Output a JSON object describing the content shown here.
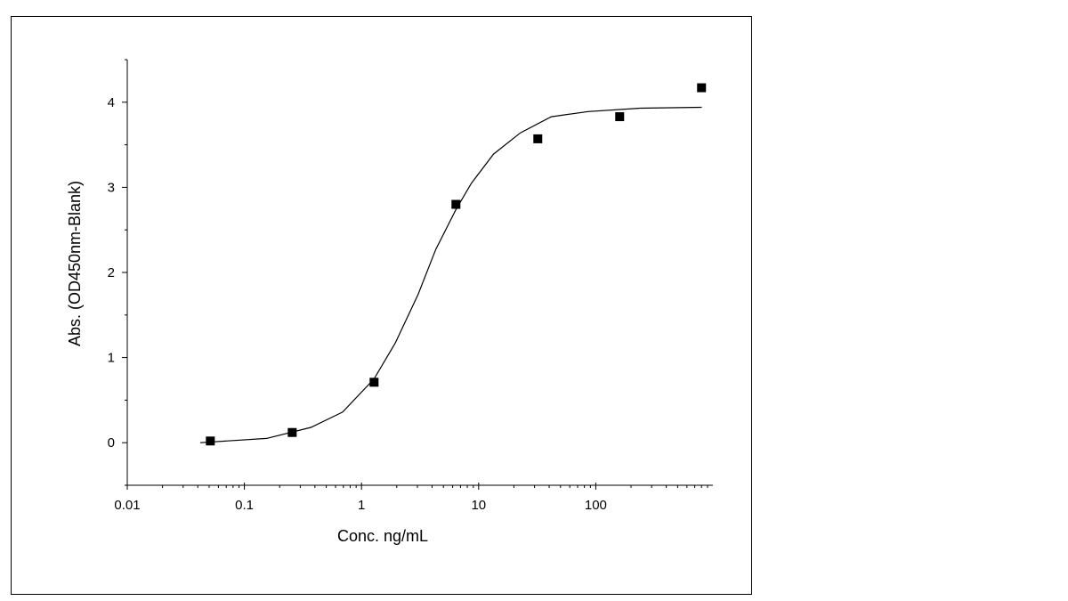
{
  "chart_data": {
    "type": "scatter",
    "x_label": "Conc. ng/mL",
    "y_label": "Abs. (OD450nm-Blank)",
    "xscale": "log",
    "xlim": [
      0.01,
      1000
    ],
    "xticks": [
      0.01,
      0.1,
      1,
      10,
      100
    ],
    "xminorticks": [
      0.02,
      0.03,
      0.04,
      0.05,
      0.06,
      0.07,
      0.08,
      0.09,
      0.2,
      0.3,
      0.4,
      0.5,
      0.6,
      0.7,
      0.8,
      0.9,
      2,
      3,
      4,
      5,
      6,
      7,
      8,
      9,
      20,
      30,
      40,
      50,
      60,
      70,
      80,
      90,
      200,
      300,
      400,
      500,
      600,
      700,
      800,
      900
    ],
    "ylim": [
      -0.5,
      4.5
    ],
    "yticks": [
      0,
      1,
      2,
      3,
      4
    ],
    "yminorticks": [
      -0.5,
      0.5,
      1.5,
      2.5,
      3.5,
      4.5
    ],
    "grid": false,
    "series": [
      {
        "type": "line",
        "color": "#000000",
        "x": [
          0.042,
          0.155,
          0.37,
          0.69,
          1.28,
          1.94,
          3.04,
          4.3,
          6.4,
          8.7,
          13.4,
          22.7,
          41.7,
          86,
          240,
          804
        ],
        "values": [
          0.0,
          0.05,
          0.18,
          0.36,
          0.75,
          1.17,
          1.74,
          2.27,
          2.74,
          3.05,
          3.39,
          3.64,
          3.83,
          3.89,
          3.93,
          3.94
        ]
      },
      {
        "type": "scatter",
        "color": "#000000",
        "x": [
          0.0512,
          0.256,
          1.28,
          6.4,
          32,
          160,
          800
        ],
        "values": [
          0.02,
          0.12,
          0.71,
          2.8,
          3.57,
          3.83,
          4.17
        ]
      }
    ]
  }
}
